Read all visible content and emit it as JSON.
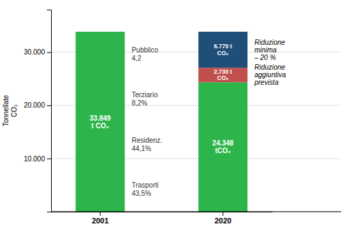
{
  "chart_data": {
    "type": "bar",
    "stacked": true,
    "categories": [
      "2001",
      "2020"
    ],
    "series": [
      {
        "color": "#2db54b",
        "values": [
          33849,
          24348
        ],
        "value_labels": [
          "33.849\nt CO₂",
          "24.348\ntCO₂"
        ]
      },
      {
        "name": "Riduzione\naggiuntiva\nprevista",
        "color": "#c0504d",
        "values": [
          null,
          2730
        ],
        "value_labels": [
          null,
          "2.730 t\nCO₂"
        ]
      },
      {
        "name": "Riduzione\nminima\n– 20 %",
        "color": "#1f4e79",
        "values": [
          null,
          6770
        ],
        "value_labels": [
          null,
          "6.770 t\nCO₂"
        ]
      }
    ],
    "ylabel": "Tonnellate\nCO₂",
    "ylim": [
      0,
      38000
    ],
    "yticks": [
      {
        "value": 0,
        "label": null
      },
      {
        "value": 10000,
        "label": "10.000"
      },
      {
        "value": 20000,
        "label": "20.000"
      },
      {
        "value": 30000,
        "label": "30.000"
      }
    ],
    "grid": true,
    "data_labels": true,
    "annotations": [
      "Pubblico\n4,2",
      "Terziario\n8,2%",
      "Residenz.\n44,1%",
      "Trasporti\n43,5%"
    ]
  }
}
